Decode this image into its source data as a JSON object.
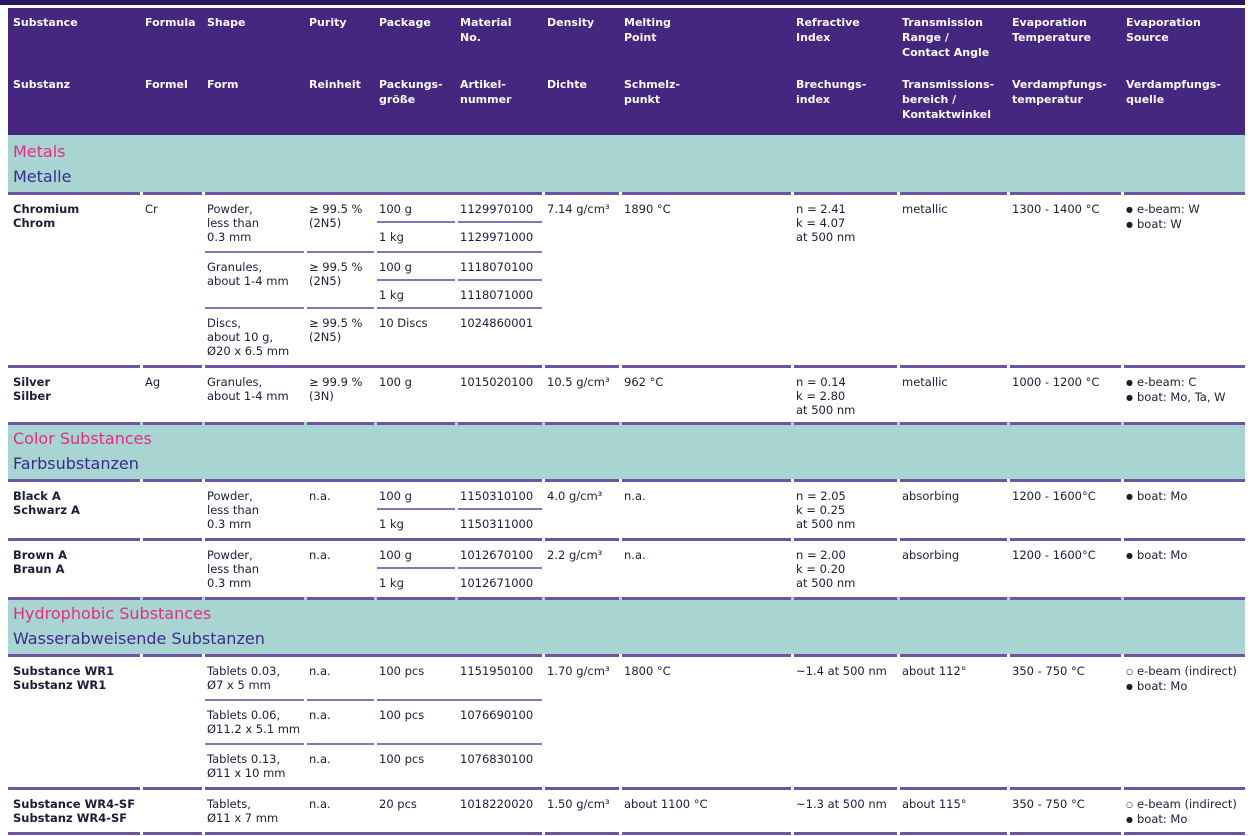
{
  "table": {
    "colors": {
      "header_background": "#45277F",
      "top_bar": "#2D1560",
      "section_background": "#A8D4D2",
      "section_title_pink": "#E42D8B",
      "section_title_purple": "#3D2B8D",
      "separator_line": "#6E55A4",
      "text": "#1C1C38"
    },
    "bullets": {
      "filled": "●",
      "open": "○"
    },
    "header": {
      "columns": [
        {
          "id": "substance",
          "en": "Substance",
          "de": "Substanz"
        },
        {
          "id": "formula",
          "en": "Formula",
          "de": "Formel"
        },
        {
          "id": "shape",
          "en": "Shape",
          "de": "Form"
        },
        {
          "id": "purity",
          "en": "Purity",
          "de": "Reinheit"
        },
        {
          "id": "package",
          "en": "Package",
          "de": "Packungs-\ngröße"
        },
        {
          "id": "material-no",
          "en": "Material\nNo.",
          "de": "Artikel-\nnummer"
        },
        {
          "id": "density",
          "en": "Density",
          "de": "Dichte"
        },
        {
          "id": "melting-point",
          "en": "Melting\nPoint",
          "de": "Schmelz-\npunkt"
        },
        {
          "id": "refractive-index",
          "en": "Refractive\nIndex",
          "de": "Brechungs-\nindex"
        },
        {
          "id": "transmission-range",
          "en": "Transmission\nRange /\nContact Angle",
          "de": "Transmissions-\nbereich /\nKontaktwinkel"
        },
        {
          "id": "evaporation-temperature",
          "en": "Evaporation\nTemperature",
          "de": "Verdampfungs-\ntemperatur"
        },
        {
          "id": "evaporation-source",
          "en": "Evaporation\nSource",
          "de": "Verdampfungs-\nquelle"
        }
      ]
    },
    "sections": [
      {
        "title_en": "Metals",
        "title_de": "Metalle",
        "rows": [
          {
            "substance": {
              "en": "Chromium",
              "de": "Chrom"
            },
            "formula": "Cr",
            "shapes": [
              {
                "shape": "Powder,\nless than\n0.3 mm",
                "purity": "≥ 99.5 %\n(2N5)",
                "packages": [
                  {
                    "qty": "100 g",
                    "material_no": "1129970100"
                  },
                  {
                    "qty": "1 kg",
                    "material_no": "1129971000"
                  }
                ]
              },
              {
                "shape": "Granules,\nabout 1-4 mm",
                "purity": "≥ 99.5 %\n(2N5)",
                "packages": [
                  {
                    "qty": "100 g",
                    "material_no": "1118070100"
                  },
                  {
                    "qty": "1 kg",
                    "material_no": "1118071000"
                  }
                ]
              },
              {
                "shape": "Discs,\nabout 10 g,\nØ20 x 6.5 mm",
                "purity": "≥ 99.5 %\n(2N5)",
                "packages": [
                  {
                    "qty": "10 Discs",
                    "material_no": "1024860001"
                  }
                ]
              }
            ],
            "density": "7.14 g/cm³",
            "melting_point": "1890 °C",
            "refractive_index": "n = 2.41\nk = 4.07\nat 500 nm",
            "transmission": "metallic",
            "evaporation_temperature": "1300 - 1400 °C",
            "evaporation_source": [
              {
                "marker": "filled",
                "text": "e-beam: W"
              },
              {
                "marker": "filled",
                "text": "boat: W"
              }
            ]
          },
          {
            "substance": {
              "en": "Silver",
              "de": "Silber"
            },
            "formula": "Ag",
            "shapes": [
              {
                "shape": "Granules,\nabout 1-4 mm",
                "purity": "≥ 99.9 %\n(3N)",
                "packages": [
                  {
                    "qty": "100 g",
                    "material_no": "1015020100"
                  }
                ]
              }
            ],
            "density": "10.5 g/cm³",
            "melting_point": "962 °C",
            "refractive_index": "n = 0.14\nk = 2.80\nat 500 nm",
            "transmission": "metallic",
            "evaporation_temperature": "1000 - 1200 °C",
            "evaporation_source": [
              {
                "marker": "filled",
                "text": "e-beam: C"
              },
              {
                "marker": "filled",
                "text": "boat: Mo, Ta, W"
              }
            ]
          }
        ]
      },
      {
        "title_en": "Color Substances",
        "title_de": "Farbsubstanzen",
        "rows": [
          {
            "substance": {
              "en": "Black A",
              "de": "Schwarz A"
            },
            "formula": "",
            "shapes": [
              {
                "shape": "Powder,\nless than\n0.3 mm",
                "purity": "n.a.",
                "packages": [
                  {
                    "qty": "100 g",
                    "material_no": "1150310100"
                  },
                  {
                    "qty": "1 kg",
                    "material_no": "1150311000"
                  }
                ]
              }
            ],
            "density": "4.0 g/cm³",
            "melting_point": "n.a.",
            "refractive_index": "n = 2.05\nk = 0.25\nat 500 nm",
            "transmission": "absorbing",
            "evaporation_temperature": "1200 - 1600°C",
            "evaporation_source": [
              {
                "marker": "filled",
                "text": "boat: Mo"
              }
            ]
          },
          {
            "substance": {
              "en": "Brown A",
              "de": "Braun A"
            },
            "formula": "",
            "shapes": [
              {
                "shape": "Powder,\nless than\n0.3 mm",
                "purity": "n.a.",
                "packages": [
                  {
                    "qty": "100 g",
                    "material_no": "1012670100"
                  },
                  {
                    "qty": "1 kg",
                    "material_no": "1012671000"
                  }
                ]
              }
            ],
            "density": "2.2 g/cm³",
            "melting_point": "n.a.",
            "refractive_index": "n = 2.00\nk = 0.20\nat 500 nm",
            "transmission": "absorbing",
            "evaporation_temperature": "1200 - 1600°C",
            "evaporation_source": [
              {
                "marker": "filled",
                "text": "boat: Mo"
              }
            ]
          }
        ]
      },
      {
        "title_en": "Hydrophobic Substances",
        "title_de": "Wasserabweisende Substanzen",
        "rows": [
          {
            "substance": {
              "en": "Substance WR1",
              "de": "Substanz WR1"
            },
            "formula": "",
            "shapes": [
              {
                "shape": "Tablets 0.03,\nØ7 x 5 mm",
                "purity": "n.a.",
                "packages": [
                  {
                    "qty": "100 pcs",
                    "material_no": "1151950100"
                  }
                ]
              },
              {
                "shape": "Tablets 0.06,\nØ11.2 x 5.1 mm",
                "purity": "n.a.",
                "packages": [
                  {
                    "qty": "100 pcs",
                    "material_no": "1076690100"
                  }
                ]
              },
              {
                "shape": "Tablets 0.13,\nØ11 x 10 mm",
                "purity": "n.a.",
                "packages": [
                  {
                    "qty": "100 pcs",
                    "material_no": "1076830100"
                  }
                ]
              }
            ],
            "density": "1.70 g/cm³",
            "melting_point": "1800 °C",
            "refractive_index": "~1.4 at 500 nm",
            "transmission": "about 112°",
            "evaporation_temperature": "350 - 750 °C",
            "evaporation_source": [
              {
                "marker": "open",
                "text": "e-beam (indirect)"
              },
              {
                "marker": "filled",
                "text": "boat: Mo"
              }
            ]
          },
          {
            "substance": {
              "en": "Substance WR4-SF",
              "de": "Substanz WR4-SF"
            },
            "formula": "",
            "shapes": [
              {
                "shape": "Tablets,\nØ11 x 7 mm",
                "purity": "n.a.",
                "packages": [
                  {
                    "qty": "20 pcs",
                    "material_no": "1018220020"
                  }
                ]
              }
            ],
            "density": "1.50 g/cm³",
            "melting_point": "about 1100 °C",
            "refractive_index": "~1.3 at 500 nm",
            "transmission": "about 115°",
            "evaporation_temperature": "350 - 750 °C",
            "evaporation_source": [
              {
                "marker": "open",
                "text": "e-beam (indirect)"
              },
              {
                "marker": "filled",
                "text": "boat: Mo"
              }
            ]
          }
        ]
      }
    ]
  }
}
